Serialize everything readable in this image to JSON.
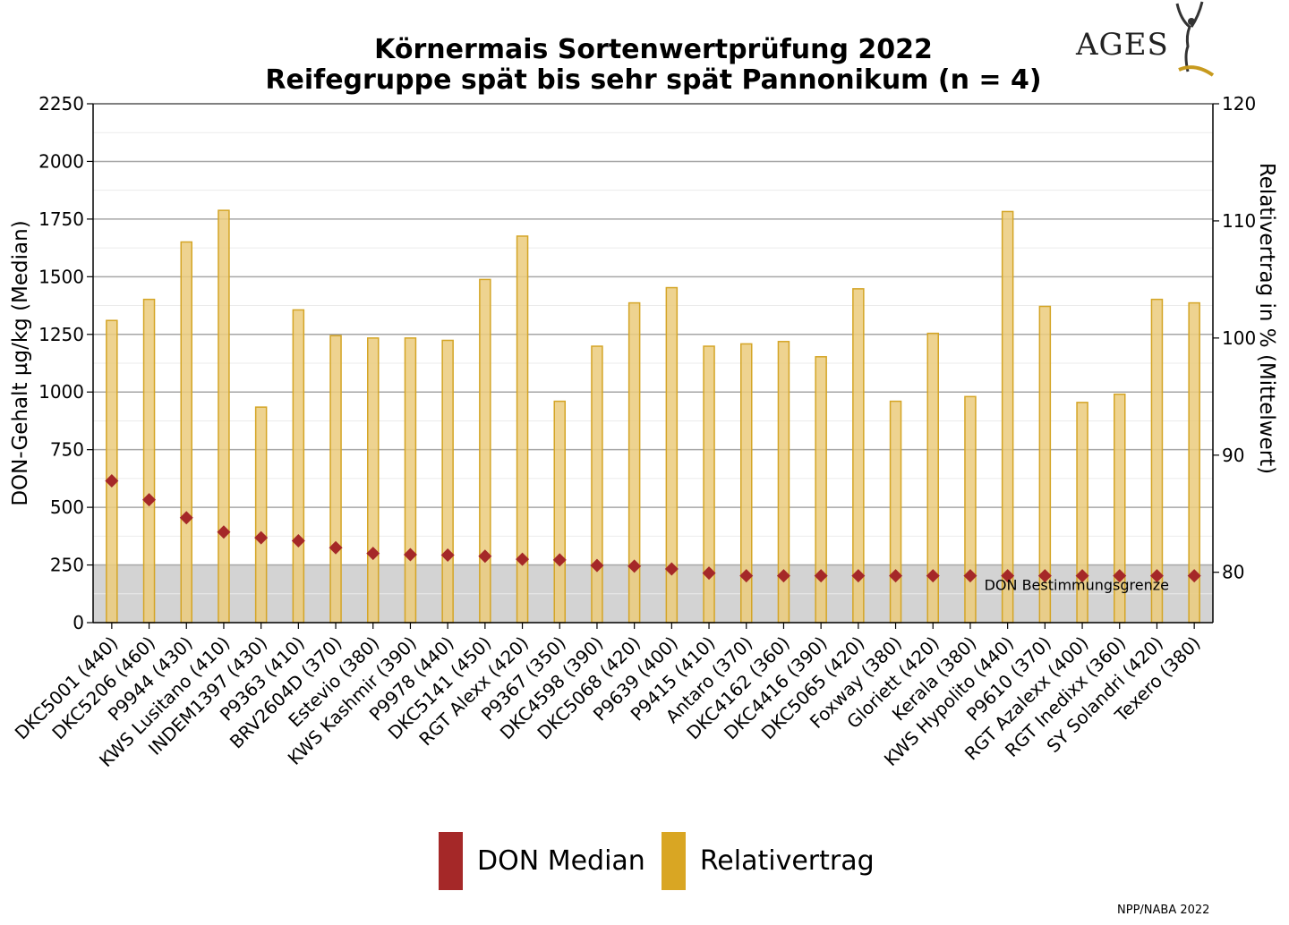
{
  "title_line1": "Körnermais Sortenwertprüfung 2022",
  "title_line2": "Reifegruppe spät bis sehr spät Pannonikum (n = 4)",
  "logo_text": "AGES",
  "footer": "NPP/NABA 2022",
  "colors": {
    "don": "#a52828",
    "relativertrag_fill": "#ebcb7c",
    "relativertrag_stroke": "#d4a526",
    "legend_relativertrag": "#d9a623",
    "threshold_band": "#d3d3d3",
    "grid_major": "#a6a6a6",
    "grid_minor": "#ebebeb"
  },
  "chart_data": {
    "type": "bar",
    "categories": [
      "DKC5001 (440)",
      "DKC5206 (460)",
      "P9944 (430)",
      "KWS Lusitano (410)",
      "INDEM1397 (430)",
      "P9363 (410)",
      "BRV2604D (370)",
      "Estevio (380)",
      "KWS Kashmir (390)",
      "P9978 (440)",
      "DKC5141 (450)",
      "RGT Alexx (420)",
      "P9367 (350)",
      "DKC4598 (390)",
      "DKC5068 (420)",
      "P9639 (400)",
      "P9415 (410)",
      "Antaro (370)",
      "DKC4162 (360)",
      "DKC4416 (390)",
      "DKC5065 (420)",
      "Foxway (380)",
      "Gloriett (420)",
      "Kerala (380)",
      "KWS Hypolito (440)",
      "P9610 (370)",
      "RGT Azalexx (400)",
      "RGT Inedixx (360)",
      "SY Solandri (420)",
      "Texero (380)"
    ],
    "series": [
      {
        "name": "DON Median",
        "type": "scatter",
        "axis": "left",
        "values": [
          615,
          533,
          455,
          393,
          368,
          355,
          325,
          300,
          295,
          293,
          288,
          275,
          272,
          248,
          245,
          233,
          215,
          203,
          203,
          203,
          203,
          203,
          203,
          203,
          203,
          203,
          203,
          203,
          203,
          203
        ]
      },
      {
        "name": "Relativertrag",
        "type": "bar",
        "axis": "right",
        "values": [
          101.5,
          103.3,
          108.2,
          110.9,
          94.1,
          102.4,
          100.2,
          100.0,
          100.0,
          99.8,
          105.0,
          108.7,
          94.6,
          99.3,
          103.0,
          104.3,
          99.3,
          99.5,
          99.7,
          98.4,
          104.2,
          94.6,
          100.4,
          95.0,
          110.8,
          102.7,
          94.5,
          95.2,
          103.3,
          103.0
        ]
      }
    ],
    "ylabel": "DON-Gehalt µg/kg (Median)",
    "ylabel_right": "Relativertrag in % (Mittelwert)",
    "ylim": [
      0,
      2250
    ],
    "ylim_right": [
      75.7,
      120
    ],
    "yticks": [
      0,
      250,
      500,
      750,
      1000,
      1250,
      1500,
      1750,
      2000,
      2250
    ],
    "yticks_right": [
      80,
      90,
      100,
      110,
      120
    ],
    "threshold": {
      "value": 250,
      "label": "DON Bestimmungsgrenze"
    },
    "grid": true,
    "legend_position": "bottom-center"
  },
  "legend": [
    {
      "label": "DON Median"
    },
    {
      "label": "Relativertrag"
    }
  ]
}
